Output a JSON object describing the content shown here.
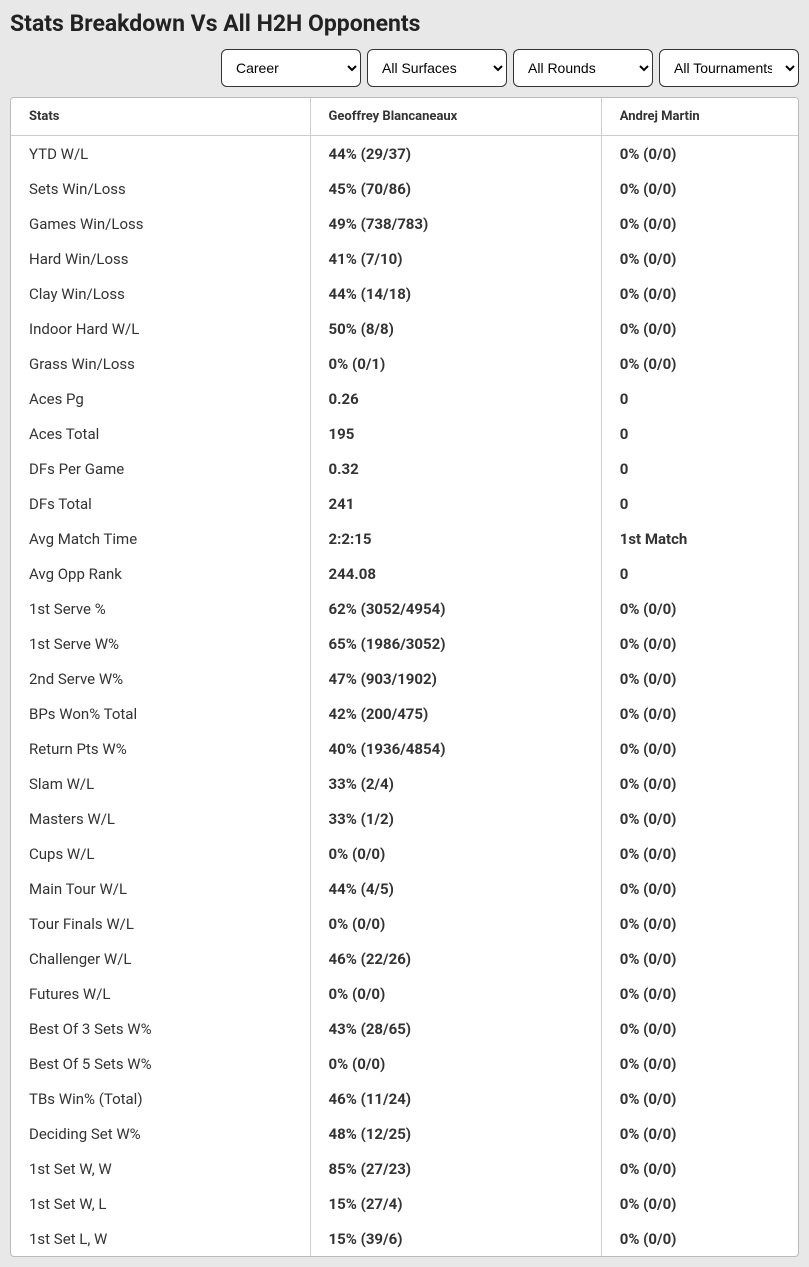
{
  "title": "Stats Breakdown Vs All H2H Opponents",
  "filters": {
    "career": "Career",
    "surface": "All Surfaces",
    "round": "All Rounds",
    "tournament": "All Tournaments"
  },
  "table": {
    "columns": [
      "Stats",
      "Geoffrey Blancaneaux",
      "Andrej Martin"
    ],
    "rows": [
      [
        "YTD W/L",
        "44% (29/37)",
        "0% (0/0)"
      ],
      [
        "Sets Win/Loss",
        "45% (70/86)",
        "0% (0/0)"
      ],
      [
        "Games Win/Loss",
        "49% (738/783)",
        "0% (0/0)"
      ],
      [
        "Hard Win/Loss",
        "41% (7/10)",
        "0% (0/0)"
      ],
      [
        "Clay Win/Loss",
        "44% (14/18)",
        "0% (0/0)"
      ],
      [
        "Indoor Hard W/L",
        "50% (8/8)",
        "0% (0/0)"
      ],
      [
        "Grass Win/Loss",
        "0% (0/1)",
        "0% (0/0)"
      ],
      [
        "Aces Pg",
        "0.26",
        "0"
      ],
      [
        "Aces Total",
        "195",
        "0"
      ],
      [
        "DFs Per Game",
        "0.32",
        "0"
      ],
      [
        "DFs Total",
        "241",
        "0"
      ],
      [
        "Avg Match Time",
        "2:2:15",
        "1st Match"
      ],
      [
        "Avg Opp Rank",
        "244.08",
        "0"
      ],
      [
        "1st Serve %",
        "62% (3052/4954)",
        "0% (0/0)"
      ],
      [
        "1st Serve W%",
        "65% (1986/3052)",
        "0% (0/0)"
      ],
      [
        "2nd Serve W%",
        "47% (903/1902)",
        "0% (0/0)"
      ],
      [
        "BPs Won% Total",
        "42% (200/475)",
        "0% (0/0)"
      ],
      [
        "Return Pts W%",
        "40% (1936/4854)",
        "0% (0/0)"
      ],
      [
        "Slam W/L",
        "33% (2/4)",
        "0% (0/0)"
      ],
      [
        "Masters W/L",
        "33% (1/2)",
        "0% (0/0)"
      ],
      [
        "Cups W/L",
        "0% (0/0)",
        "0% (0/0)"
      ],
      [
        "Main Tour W/L",
        "44% (4/5)",
        "0% (0/0)"
      ],
      [
        "Tour Finals W/L",
        "0% (0/0)",
        "0% (0/0)"
      ],
      [
        "Challenger W/L",
        "46% (22/26)",
        "0% (0/0)"
      ],
      [
        "Futures W/L",
        "0% (0/0)",
        "0% (0/0)"
      ],
      [
        "Best Of 3 Sets W%",
        "43% (28/65)",
        "0% (0/0)"
      ],
      [
        "Best Of 5 Sets W%",
        "0% (0/0)",
        "0% (0/0)"
      ],
      [
        "TBs Win% (Total)",
        "46% (11/24)",
        "0% (0/0)"
      ],
      [
        "Deciding Set W%",
        "48% (12/25)",
        "0% (0/0)"
      ],
      [
        "1st Set W, W",
        "85% (27/23)",
        "0% (0/0)"
      ],
      [
        "1st Set W, L",
        "15% (27/4)",
        "0% (0/0)"
      ],
      [
        "1st Set L, W",
        "15% (39/6)",
        "0% (0/0)"
      ]
    ]
  }
}
